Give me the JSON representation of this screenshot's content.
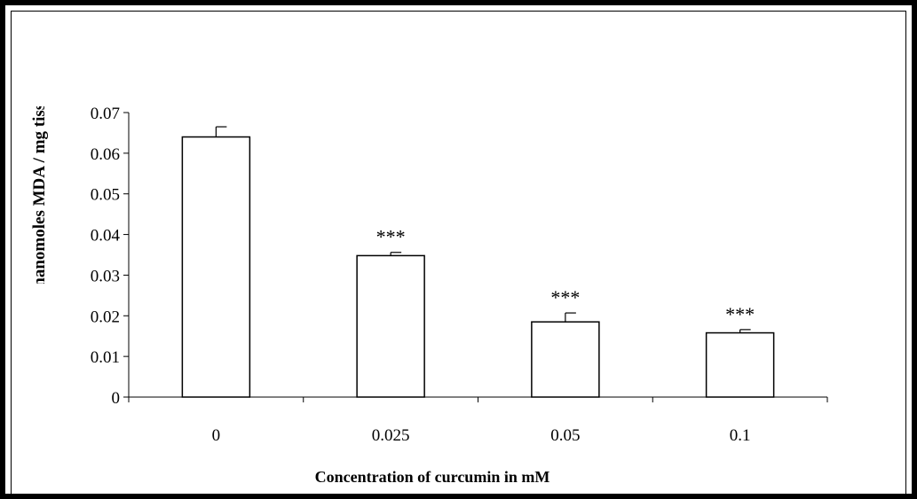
{
  "chart_data": {
    "type": "bar",
    "categories": [
      "0",
      "0.025",
      "0.05",
      "0.1"
    ],
    "values": [
      0.064,
      0.0348,
      0.0185,
      0.0158
    ],
    "errors": [
      0.0025,
      0.0008,
      0.0022,
      0.0008
    ],
    "annotations": [
      "",
      "***",
      "***",
      "***"
    ],
    "xlabel": "Concentration of curcumin in mM",
    "ylabel": "nanomoles MDA / mg tissu",
    "ylim": [
      0,
      0.07
    ],
    "yticks": [
      "0",
      "0.01",
      "0.02",
      "0.03",
      "0.04",
      "0.05",
      "0.06",
      "0.07"
    ],
    "grid": false,
    "bar_fill": "#ffffff",
    "bar_stroke": "#000000"
  }
}
